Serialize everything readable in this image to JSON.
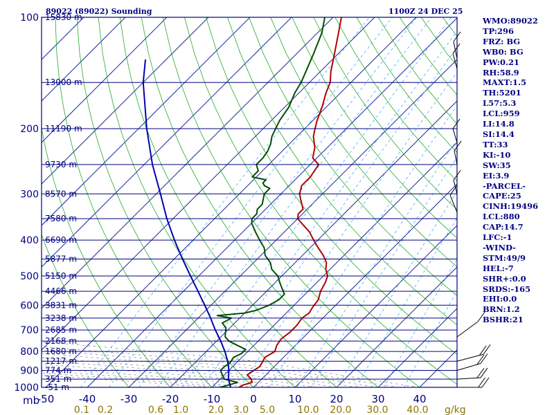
{
  "header": {
    "station": "89022 (89022) Sounding",
    "time": "1100Z 24 DEC 25"
  },
  "chart_data": {
    "type": "line",
    "title": "89022 (89022) Sounding",
    "xlabel_left": "mb",
    "xlabel_right": "g/kg",
    "pressure_levels": [
      1000,
      900,
      800,
      700,
      600,
      500,
      400,
      300,
      200,
      100
    ],
    "pressure_tick_labels": [
      "1000",
      "900",
      "800",
      "700",
      "600",
      "500",
      "400",
      "300",
      "200",
      "100"
    ],
    "temperature_ticks": [
      -50,
      -40,
      -30,
      -20,
      -10,
      0,
      10,
      20,
      30,
      40
    ],
    "temperature_tick_labels": [
      "-50",
      "-40",
      "-30",
      "-20",
      "-10",
      "0",
      "10",
      "20",
      "30",
      "40"
    ],
    "mixing_ratio_labels": [
      "0.1",
      "0.2",
      "0.6",
      "1.0",
      "2.0",
      "3.0",
      "5.0",
      "10.0",
      "20.0",
      "30.0",
      "40.0"
    ],
    "height_labels": [
      {
        "p": 100,
        "label": "15830 m"
      },
      {
        "p": 150,
        "label": "13000 m"
      },
      {
        "p": 200,
        "label": "11190 m"
      },
      {
        "p": 250,
        "label": "9730 m"
      },
      {
        "p": 300,
        "label": "8570 m"
      },
      {
        "p": 350,
        "label": "7580 m"
      },
      {
        "p": 400,
        "label": "6690 m"
      },
      {
        "p": 450,
        "label": "5877 m"
      },
      {
        "p": 500,
        "label": "5150 m"
      },
      {
        "p": 550,
        "label": "4466 m"
      },
      {
        "p": 600,
        "label": "3831 m"
      },
      {
        "p": 650,
        "label": "3238 m"
      },
      {
        "p": 700,
        "label": "2685 m"
      },
      {
        "p": 750,
        "label": "2168 m"
      },
      {
        "p": 800,
        "label": "1680 m"
      },
      {
        "p": 850,
        "label": "1217 m"
      },
      {
        "p": 900,
        "label": "774 m"
      },
      {
        "p": 950,
        "label": "351 m"
      },
      {
        "p": 1000,
        "label": "-51 m"
      }
    ],
    "series": [
      {
        "color": "#b00000",
        "points": [
          [
            1000,
            -3.5
          ],
          [
            985,
            -3.0
          ],
          [
            970,
            -1.5
          ],
          [
            950,
            -2.5
          ],
          [
            925,
            -4.5
          ],
          [
            900,
            -4.0
          ],
          [
            880,
            -3.5
          ],
          [
            850,
            -4.0
          ],
          [
            830,
            -4.5
          ],
          [
            800,
            -3.5
          ],
          [
            770,
            -4.5
          ],
          [
            740,
            -5.0
          ],
          [
            710,
            -4.5
          ],
          [
            680,
            -4.5
          ],
          [
            650,
            -5.0
          ],
          [
            630,
            -4.5
          ],
          [
            610,
            -5.0
          ],
          [
            580,
            -5.5
          ],
          [
            550,
            -7.0
          ],
          [
            520,
            -8.0
          ],
          [
            500,
            -9.0
          ],
          [
            480,
            -11.0
          ],
          [
            460,
            -12.5
          ],
          [
            440,
            -15.0
          ],
          [
            420,
            -18.0
          ],
          [
            400,
            -21.0
          ],
          [
            380,
            -24.0
          ],
          [
            360,
            -28.0
          ],
          [
            350,
            -30.0
          ],
          [
            340,
            -31.0
          ],
          [
            330,
            -31.0
          ],
          [
            310,
            -34.0
          ],
          [
            300,
            -35.5
          ],
          [
            285,
            -37.0
          ],
          [
            270,
            -37.0
          ],
          [
            260,
            -37.5
          ],
          [
            250,
            -38.0
          ],
          [
            240,
            -41.0
          ],
          [
            225,
            -43.0
          ],
          [
            210,
            -46.0
          ],
          [
            200,
            -47.5
          ],
          [
            190,
            -49.0
          ],
          [
            175,
            -51.0
          ],
          [
            160,
            -53.5
          ],
          [
            150,
            -55.0
          ],
          [
            140,
            -57.5
          ],
          [
            125,
            -61.0
          ],
          [
            110,
            -65.0
          ],
          [
            100,
            -68.0
          ]
        ]
      },
      {
        "color": "#005000",
        "points": [
          [
            1000,
            -8.0
          ],
          [
            990,
            -7.0
          ],
          [
            970,
            -5.0
          ],
          [
            950,
            -9.0
          ],
          [
            925,
            -10.5
          ],
          [
            900,
            -12.0
          ],
          [
            880,
            -12.0
          ],
          [
            860,
            -11.5
          ],
          [
            830,
            -12.0
          ],
          [
            810,
            -11.0
          ],
          [
            790,
            -11.0
          ],
          [
            770,
            -14.0
          ],
          [
            750,
            -17.0
          ],
          [
            730,
            -19.0
          ],
          [
            710,
            -20.0
          ],
          [
            690,
            -21.0
          ],
          [
            670,
            -23.0
          ],
          [
            650,
            -22.0
          ],
          [
            640,
            -26.0
          ],
          [
            630,
            -20.0
          ],
          [
            620,
            -18.0
          ],
          [
            600,
            -16.0
          ],
          [
            580,
            -15.0
          ],
          [
            560,
            -15.0
          ],
          [
            540,
            -17.0
          ],
          [
            520,
            -19.0
          ],
          [
            500,
            -21.0
          ],
          [
            480,
            -24.0
          ],
          [
            460,
            -26.0
          ],
          [
            440,
            -29.0
          ],
          [
            420,
            -31.0
          ],
          [
            400,
            -34.0
          ],
          [
            380,
            -37.0
          ],
          [
            360,
            -40.0
          ],
          [
            350,
            -41.0
          ],
          [
            340,
            -41.0
          ],
          [
            330,
            -42.0
          ],
          [
            320,
            -42.0
          ],
          [
            310,
            -43.0
          ],
          [
            300,
            -44.0
          ],
          [
            290,
            -44.0
          ],
          [
            285,
            -46.0
          ],
          [
            280,
            -47.0
          ],
          [
            275,
            -47.0
          ],
          [
            270,
            -51.0
          ],
          [
            260,
            -51.0
          ],
          [
            250,
            -53.0
          ],
          [
            240,
            -53.0
          ],
          [
            230,
            -53.5
          ],
          [
            220,
            -54.5
          ],
          [
            210,
            -56.0
          ],
          [
            200,
            -57.0
          ],
          [
            190,
            -58.0
          ],
          [
            175,
            -59.0
          ],
          [
            160,
            -61.0
          ],
          [
            150,
            -62.0
          ],
          [
            140,
            -63.5
          ],
          [
            125,
            -66.0
          ],
          [
            110,
            -69.0
          ],
          [
            100,
            -72.0
          ]
        ]
      },
      {
        "color": "#0000b0",
        "points": [
          [
            1000,
            -5.5
          ],
          [
            950,
            -8.0
          ],
          [
            900,
            -10.0
          ],
          [
            850,
            -12.5
          ],
          [
            800,
            -15.5
          ],
          [
            750,
            -19.0
          ],
          [
            700,
            -23.0
          ],
          [
            650,
            -27.0
          ],
          [
            600,
            -31.5
          ],
          [
            550,
            -36.5
          ],
          [
            500,
            -42.0
          ],
          [
            450,
            -48.0
          ],
          [
            400,
            -54.5
          ],
          [
            350,
            -61.5
          ],
          [
            300,
            -69.0
          ],
          [
            250,
            -78.0
          ],
          [
            200,
            -88.0
          ],
          [
            150,
            -100.0
          ],
          [
            130,
            -105.0
          ]
        ]
      }
    ]
  },
  "indices": [
    "WMO:89022",
    "TP:296",
    "FRZ: BG",
    "WB0: BG",
    "PW:0.21",
    "RH:58.9",
    "MAXT:1.5",
    "TH:5201",
    "L57:5.3",
    "LCL:959",
    "LI:14.8",
    "SI:14.4",
    "TT:33",
    "KI:-10",
    "SW:35",
    "EI:3.9",
    "-PARCEL-",
    "CAPE:25",
    "CINH:19496",
    "LCL:880",
    "CAP:14.7",
    "LFC:-1",
    "-WIND-",
    "STM:49/9",
    "HEL:-7",
    "SHR+:0.0",
    "SRDS:-165",
    "EHI:0.0",
    "BRN:1.2",
    "BSHR:21"
  ]
}
